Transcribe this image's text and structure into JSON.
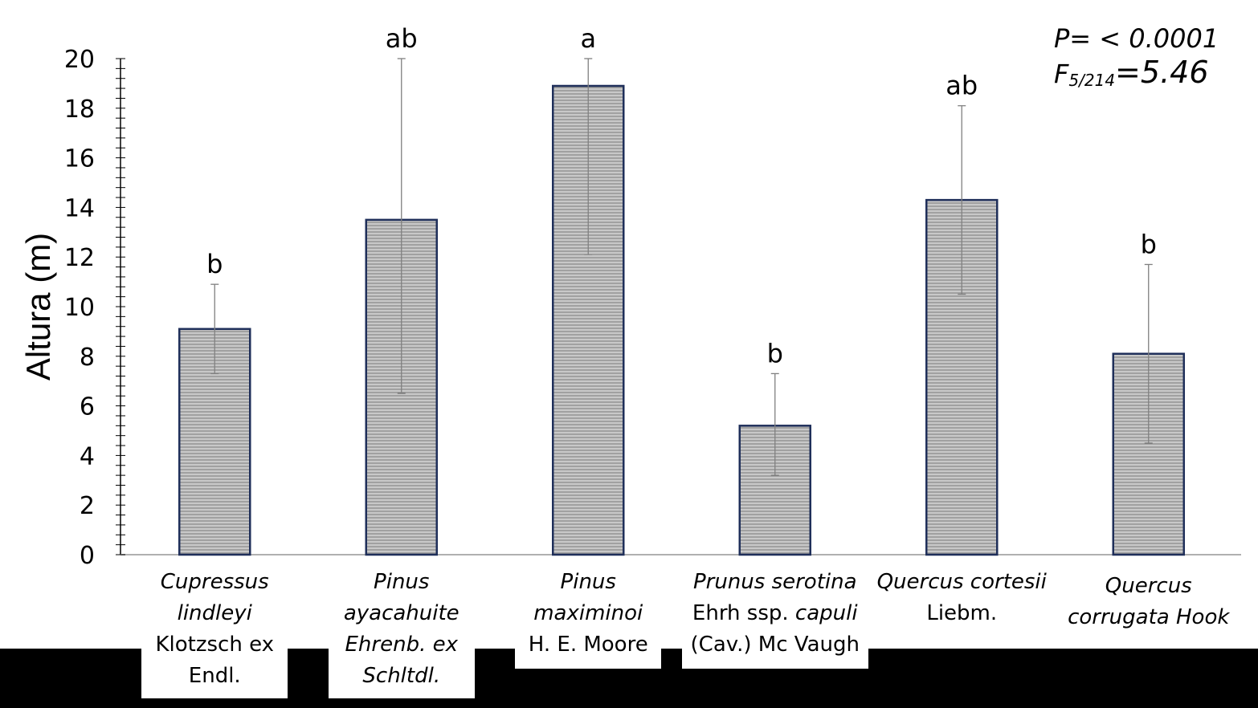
{
  "chart_data": {
    "type": "bar",
    "title": "",
    "xlabel": "",
    "ylabel": "Altura (m)",
    "ylim": [
      0,
      20
    ],
    "y_ticks": [
      0,
      2,
      4,
      6,
      8,
      10,
      12,
      14,
      16,
      18,
      20
    ],
    "grid": false,
    "bar_color": "#b4b4b4",
    "bar_border_color": "#1f2f5a",
    "categories": [
      {
        "lines": [
          {
            "text": "Cupressus",
            "italic": true
          },
          {
            "text": "lindleyi",
            "italic": true
          },
          {
            "text": "Klotzsch ex",
            "italic": false
          },
          {
            "text": "Endl.",
            "italic": false
          }
        ]
      },
      {
        "lines": [
          {
            "text": "Pinus",
            "italic": true
          },
          {
            "text": "ayacahuite",
            "italic": true
          },
          {
            "text": "Ehrenb. ex",
            "italic": true
          },
          {
            "text": "Schltdl.",
            "italic": true
          }
        ]
      },
      {
        "lines": [
          {
            "text": "Pinus",
            "italic": true
          },
          {
            "text": "maximinoi",
            "italic": true
          },
          {
            "text": "H. E. Moore",
            "italic": false
          }
        ]
      },
      {
        "lines": [
          {
            "text": "Prunus serotina",
            "italic": true
          },
          {
            "text": "Ehrh ssp. ",
            "italic": false,
            "tail": "capuli",
            "tail_italic": true
          },
          {
            "text": "(Cav.) Mc Vaugh",
            "italic": false
          }
        ]
      },
      {
        "lines": [
          {
            "text": "Quercus cortesii",
            "italic": true
          },
          {
            "text": "Liebm.",
            "italic": false
          }
        ]
      },
      {
        "lines": [
          {
            "text": "Quercus",
            "italic": true
          },
          {
            "text": "corrugata Hook",
            "italic": true
          }
        ]
      }
    ],
    "values": [
      9.1,
      13.5,
      18.9,
      5.2,
      14.3,
      8.1
    ],
    "error_upper": [
      10.9,
      20.0,
      20.0,
      7.3,
      18.1,
      11.7
    ],
    "error_lower": [
      7.3,
      6.5,
      12.1,
      3.2,
      10.5,
      4.5
    ],
    "group_letters": [
      "b",
      "ab",
      "a",
      "b",
      "ab",
      "b"
    ],
    "stats": {
      "p_text": "P= < 0.0001",
      "f_prefix": "F",
      "f_sub": "5/214",
      "f_value": "=5.46"
    }
  }
}
